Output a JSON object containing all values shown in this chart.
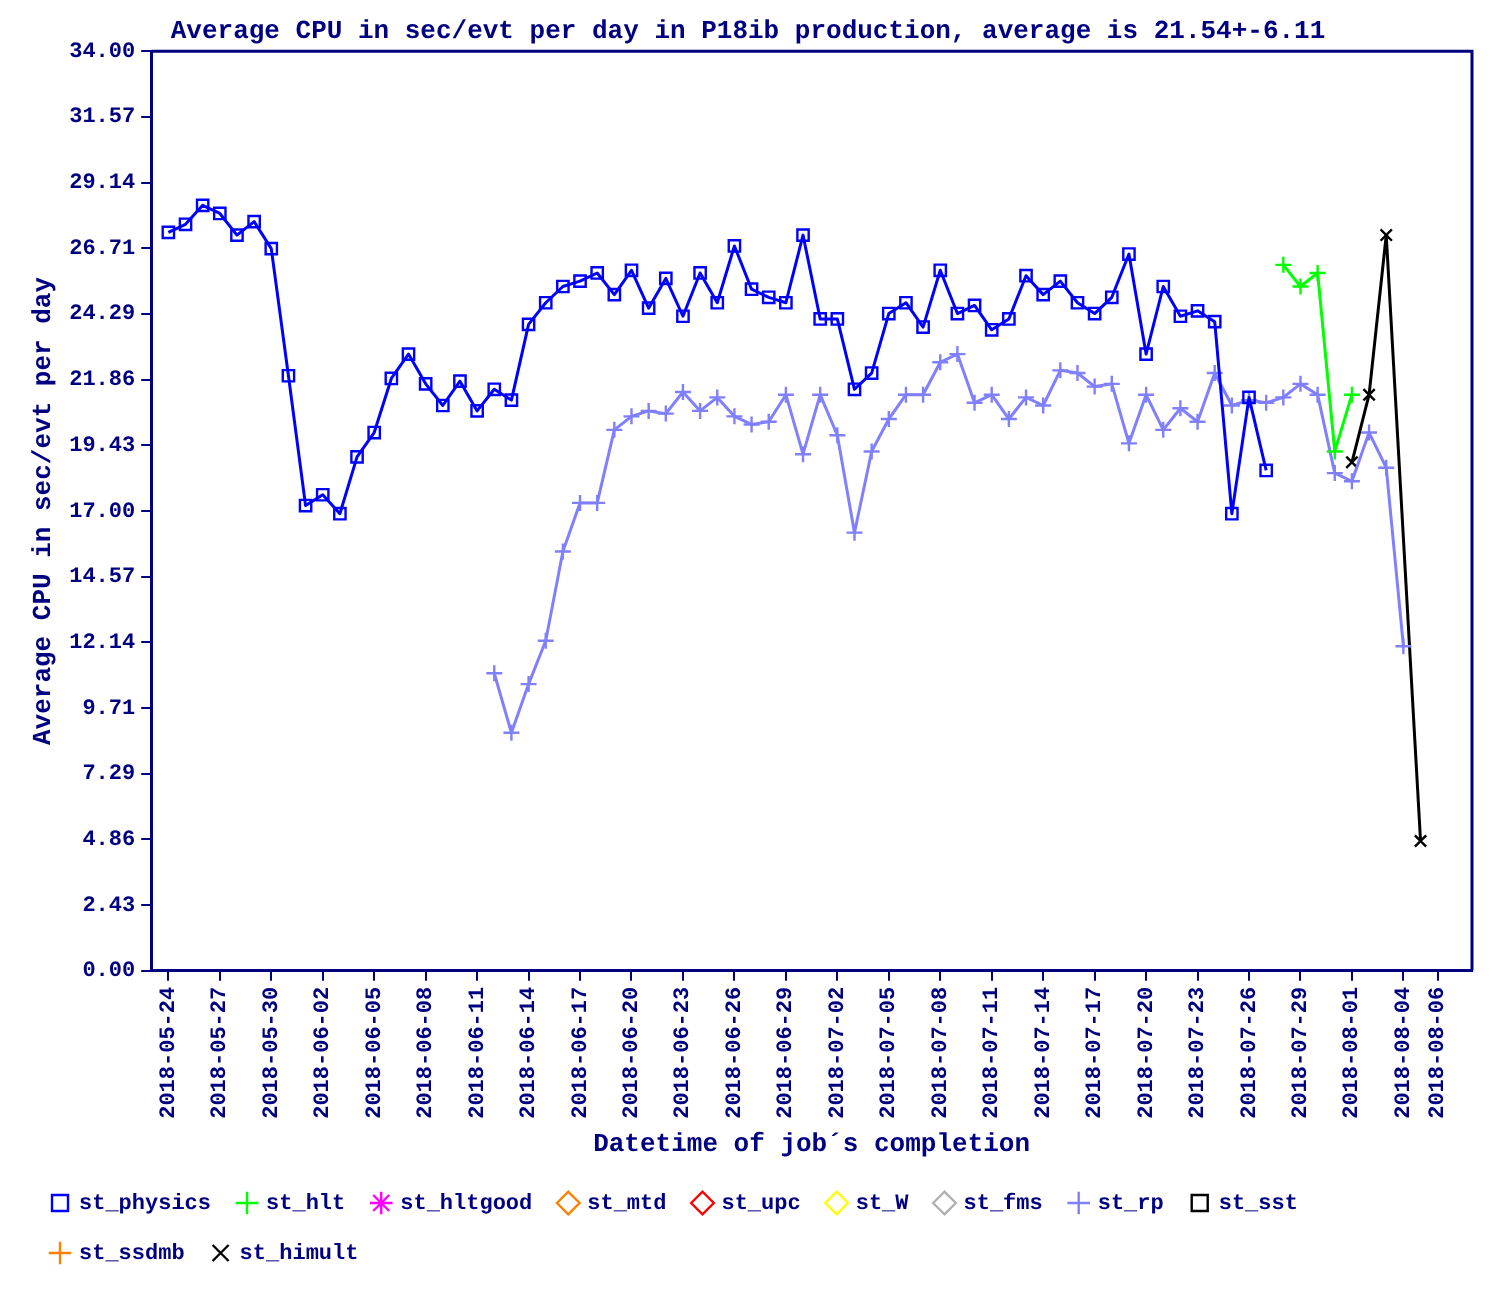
{
  "chart_data": {
    "type": "line",
    "title": "Average CPU in sec/evt per day in P18ib production, average is 21.54+-6.11",
    "xlabel": "Datetime of job´s completion",
    "ylabel": "Average CPU in sec/evt per day",
    "xlim": [
      "2018-05-23",
      "2018-08-08"
    ],
    "xticks": [
      "2018-05-24",
      "2018-05-27",
      "2018-05-30",
      "2018-06-02",
      "2018-06-05",
      "2018-06-08",
      "2018-06-11",
      "2018-06-14",
      "2018-06-17",
      "2018-06-20",
      "2018-06-23",
      "2018-06-26",
      "2018-06-29",
      "2018-07-02",
      "2018-07-05",
      "2018-07-08",
      "2018-07-11",
      "2018-07-14",
      "2018-07-17",
      "2018-07-20",
      "2018-07-23",
      "2018-07-26",
      "2018-07-29",
      "2018-08-01",
      "2018-08-04",
      "2018-08-06"
    ],
    "ylim": [
      0,
      34
    ],
    "yticks": [
      {
        "value": 0,
        "label": "0.00"
      },
      {
        "value": 2.43,
        "label": "2.43"
      },
      {
        "value": 4.86,
        "label": "4.86"
      },
      {
        "value": 7.29,
        "label": "7.29"
      },
      {
        "value": 9.71,
        "label": "9.71"
      },
      {
        "value": 12.14,
        "label": "12.14"
      },
      {
        "value": 14.57,
        "label": "14.57"
      },
      {
        "value": 17,
        "label": "17.00"
      },
      {
        "value": 19.43,
        "label": "19.43"
      },
      {
        "value": 21.86,
        "label": "21.86"
      },
      {
        "value": 24.29,
        "label": "24.29"
      },
      {
        "value": 26.71,
        "label": "26.71"
      },
      {
        "value": 29.14,
        "label": "29.14"
      },
      {
        "value": 31.57,
        "label": "31.57"
      },
      {
        "value": 34,
        "label": "34.00"
      }
    ],
    "grid": false,
    "legend": "bottom",
    "series": [
      {
        "name": "st_physics",
        "color": "#0000ff",
        "marker": "square",
        "x": [
          "2018-05-24",
          "2018-05-25",
          "2018-05-26",
          "2018-05-27",
          "2018-05-28",
          "2018-05-29",
          "2018-05-30",
          "2018-05-31",
          "2018-06-01",
          "2018-06-02",
          "2018-06-03",
          "2018-06-04",
          "2018-06-05",
          "2018-06-06",
          "2018-06-07",
          "2018-06-08",
          "2018-06-09",
          "2018-06-10",
          "2018-06-11",
          "2018-06-12",
          "2018-06-13",
          "2018-06-14",
          "2018-06-15",
          "2018-06-16",
          "2018-06-17",
          "2018-06-18",
          "2018-06-19",
          "2018-06-20",
          "2018-06-21",
          "2018-06-22",
          "2018-06-23",
          "2018-06-24",
          "2018-06-25",
          "2018-06-26",
          "2018-06-27",
          "2018-06-28",
          "2018-06-29",
          "2018-06-30",
          "2018-07-01",
          "2018-07-02",
          "2018-07-03",
          "2018-07-04",
          "2018-07-05",
          "2018-07-06",
          "2018-07-07",
          "2018-07-08",
          "2018-07-09",
          "2018-07-10",
          "2018-07-11",
          "2018-07-12",
          "2018-07-13",
          "2018-07-14",
          "2018-07-15",
          "2018-07-16",
          "2018-07-17",
          "2018-07-18",
          "2018-07-19",
          "2018-07-20",
          "2018-07-21",
          "2018-07-22",
          "2018-07-23",
          "2018-07-24",
          "2018-07-25",
          "2018-07-26",
          "2018-07-27"
        ],
        "values": [
          27.3,
          27.6,
          28.3,
          28.0,
          27.2,
          27.7,
          26.7,
          22.0,
          17.2,
          17.6,
          16.9,
          19.0,
          19.9,
          21.9,
          22.8,
          21.7,
          20.9,
          21.8,
          20.7,
          21.5,
          21.1,
          23.9,
          24.7,
          25.3,
          25.5,
          25.8,
          25.0,
          25.9,
          24.5,
          25.6,
          24.2,
          25.8,
          24.7,
          26.8,
          25.2,
          24.9,
          24.7,
          27.2,
          24.1,
          24.1,
          21.5,
          22.1,
          24.3,
          24.7,
          23.8,
          25.9,
          24.3,
          24.6,
          23.7,
          24.1,
          25.7,
          25.0,
          25.5,
          24.7,
          24.3,
          24.9,
          26.5,
          22.8,
          25.3,
          24.2,
          24.4,
          24.0,
          16.9,
          21.2,
          18.5
        ]
      },
      {
        "name": "st_hlt",
        "color": "#00ff00",
        "marker": "cross",
        "x": [
          "2018-07-28",
          "2018-07-29",
          "2018-07-30",
          "2018-07-31",
          "2018-08-01"
        ],
        "values": [
          26.1,
          25.3,
          25.8,
          19.2,
          21.3
        ]
      },
      {
        "name": "st_hltgood",
        "color": "#ff00ff",
        "marker": "star"
      },
      {
        "name": "st_mtd",
        "color": "#ff8000",
        "marker": "diamond"
      },
      {
        "name": "st_upc",
        "color": "#ff0000",
        "marker": "diamond"
      },
      {
        "name": "st_W",
        "color": "#ffff00",
        "marker": "diamond"
      },
      {
        "name": "st_fms",
        "color": "#b0b0b0",
        "marker": "diamond"
      },
      {
        "name": "st_rp",
        "color": "#8080ff",
        "marker": "cross",
        "x": [
          "2018-06-12",
          "2018-06-13",
          "2018-06-14",
          "2018-06-15",
          "2018-06-16",
          "2018-06-17",
          "2018-06-18",
          "2018-06-19",
          "2018-06-20",
          "2018-06-21",
          "2018-06-22",
          "2018-06-23",
          "2018-06-24",
          "2018-06-25",
          "2018-06-26",
          "2018-06-27",
          "2018-06-28",
          "2018-06-29",
          "2018-06-30",
          "2018-07-01",
          "2018-07-02",
          "2018-07-03",
          "2018-07-04",
          "2018-07-05",
          "2018-07-06",
          "2018-07-07",
          "2018-07-08",
          "2018-07-09",
          "2018-07-10",
          "2018-07-11",
          "2018-07-12",
          "2018-07-13",
          "2018-07-14",
          "2018-07-15",
          "2018-07-16",
          "2018-07-17",
          "2018-07-18",
          "2018-07-19",
          "2018-07-20",
          "2018-07-21",
          "2018-07-22",
          "2018-07-23",
          "2018-07-24",
          "2018-07-25",
          "2018-07-26",
          "2018-07-27",
          "2018-07-28",
          "2018-07-29",
          "2018-07-30",
          "2018-07-31",
          "2018-08-01",
          "2018-08-02",
          "2018-08-03",
          "2018-08-04"
        ],
        "values": [
          11.0,
          8.8,
          10.6,
          12.2,
          15.5,
          17.3,
          17.3,
          20.0,
          20.5,
          20.7,
          20.6,
          21.4,
          20.7,
          21.2,
          20.5,
          20.2,
          20.3,
          21.3,
          19.1,
          21.3,
          19.8,
          16.2,
          19.2,
          20.4,
          21.3,
          21.3,
          22.5,
          22.8,
          21.0,
          21.3,
          20.4,
          21.2,
          20.9,
          22.2,
          22.1,
          21.6,
          21.7,
          19.5,
          21.3,
          20.0,
          20.8,
          20.3,
          22.1,
          20.9,
          21.1,
          21.0,
          21.2,
          21.7,
          21.3,
          18.4,
          18.1,
          19.9,
          18.6,
          12.0
        ]
      },
      {
        "name": "st_sst",
        "color": "#000000",
        "marker": "square"
      },
      {
        "name": "st_ssdmb",
        "color": "#ff8000",
        "marker": "cross"
      },
      {
        "name": "st_himult",
        "color": "#000000",
        "marker": "x",
        "x": [
          "2018-08-01",
          "2018-08-02",
          "2018-08-03",
          "2018-08-05"
        ],
        "values": [
          18.8,
          21.3,
          27.2,
          4.8
        ]
      }
    ]
  }
}
